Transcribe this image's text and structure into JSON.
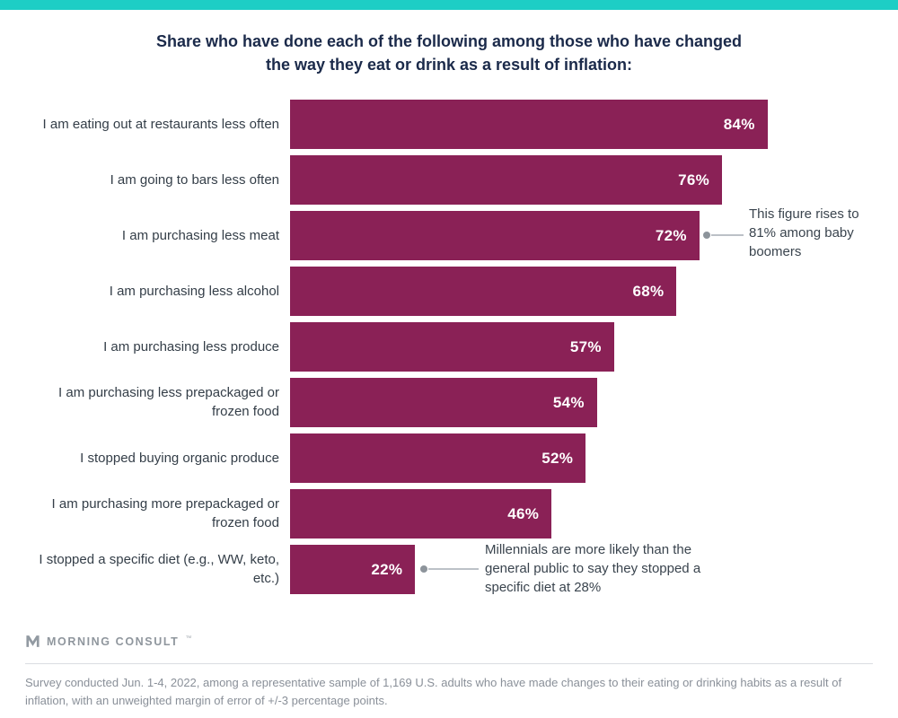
{
  "brand": {
    "logo_text": "MORNING CONSULT",
    "trademark": "™",
    "teal": "#1DCEC5",
    "bar_color": "#8A2156"
  },
  "title": {
    "line1": "Share who have done each of the following among those who have changed",
    "line2": "the way they eat or drink as a result of inflation:"
  },
  "chart_data": {
    "type": "bar",
    "orientation": "horizontal",
    "title": "Share who have done each of the following among those who have changed the way they eat or drink as a result of inflation:",
    "xlabel": "",
    "ylabel": "",
    "xlim": [
      0,
      100
    ],
    "grid": false,
    "legend": "none",
    "categories": [
      "I am eating out at restaurants less often",
      "I am going to bars less often",
      "I am purchasing less meat",
      "I am purchasing less alcohol",
      "I am purchasing less produce",
      "I am purchasing less prepackaged or frozen food",
      "I stopped buying organic produce",
      "I am purchasing more prepackaged or frozen food",
      "I stopped a specific diet (e.g., WW, keto, etc.)"
    ],
    "values": [
      84,
      76,
      72,
      68,
      57,
      54,
      52,
      46,
      22
    ],
    "value_labels": [
      "84%",
      "76%",
      "72%",
      "68%",
      "57%",
      "54%",
      "52%",
      "46%",
      "22%"
    ],
    "annotations": [
      {
        "target_category": "I am purchasing less meat",
        "target_value": 72,
        "text": "This figure rises to 81% among baby boomers"
      },
      {
        "target_category": "I stopped a specific diet (e.g., WW, keto, etc.)",
        "target_value": 22,
        "text": "Millennials are more likely than the general public to say they stopped a specific diet at 28%"
      }
    ]
  },
  "footer": {
    "note": "Survey conducted Jun. 1-4, 2022, among a representative sample of 1,169 U.S. adults who have made changes to their eating or drinking habits as a result of inflation, with an unweighted margin of error of +/-3 percentage points."
  }
}
